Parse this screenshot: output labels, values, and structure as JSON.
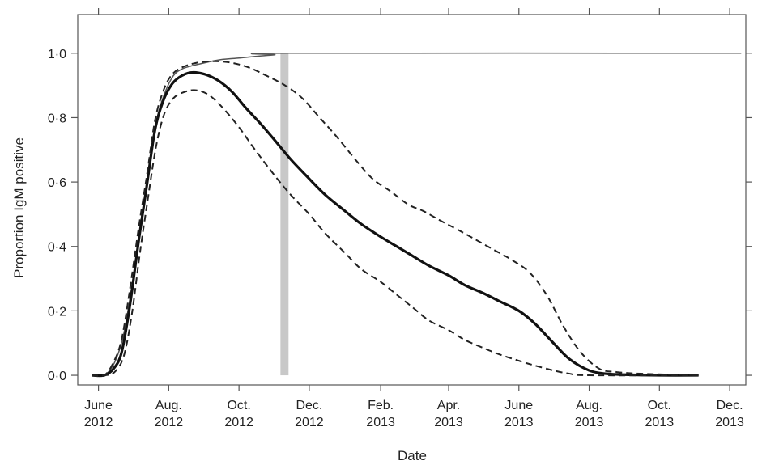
{
  "chart_data": {
    "type": "line",
    "title": "",
    "xlabel": "Date",
    "ylabel": "Proportion IgM positive",
    "xlim": [
      "2012-05-14",
      "2013-12-15"
    ],
    "ylim": [
      -0.03,
      1.12
    ],
    "grid": false,
    "legend": "none",
    "x_ticks": [
      {
        "date": "2012-06-01",
        "line1": "June",
        "line2": "2012"
      },
      {
        "date": "2012-08-01",
        "line1": "Aug.",
        "line2": "2012"
      },
      {
        "date": "2012-10-01",
        "line1": "Oct.",
        "line2": "2012"
      },
      {
        "date": "2012-12-01",
        "line1": "Dec.",
        "line2": "2012"
      },
      {
        "date": "2013-02-01",
        "line1": "Feb.",
        "line2": "2013"
      },
      {
        "date": "2013-04-01",
        "line1": "Apr.",
        "line2": "2013"
      },
      {
        "date": "2013-06-01",
        "line1": "June",
        "line2": "2013"
      },
      {
        "date": "2013-08-01",
        "line1": "Aug.",
        "line2": "2013"
      },
      {
        "date": "2013-10-01",
        "line1": "Oct.",
        "line2": "2013"
      },
      {
        "date": "2013-12-01",
        "line1": "Dec.",
        "line2": "2013"
      }
    ],
    "y_ticks": [
      {
        "value": 0.0,
        "label": "0·0"
      },
      {
        "value": 0.2,
        "label": "0·2"
      },
      {
        "value": 0.4,
        "label": "0·4"
      },
      {
        "value": 0.6,
        "label": "0·6"
      },
      {
        "value": 0.8,
        "label": "0·8"
      },
      {
        "value": 1.0,
        "label": "1·0"
      }
    ],
    "shaded_band": {
      "start": "2012-11-06",
      "end": "2012-11-13",
      "y0": 0.0,
      "y1": 1.0,
      "color": "#c8c8c8"
    },
    "series": [
      {
        "style": "thin",
        "color": "#555555",
        "points": [
          [
            "2012-05-26",
            0.0
          ],
          [
            "2012-06-06",
            0.0
          ],
          [
            "2012-06-15",
            0.04
          ],
          [
            "2012-06-23",
            0.13
          ],
          [
            "2012-07-01",
            0.3
          ],
          [
            "2012-07-08",
            0.48
          ],
          [
            "2012-07-15",
            0.65
          ],
          [
            "2012-07-22",
            0.8
          ],
          [
            "2012-07-29",
            0.88
          ],
          [
            "2012-08-05",
            0.93
          ],
          [
            "2012-08-12",
            0.95
          ],
          [
            "2012-08-20",
            0.96
          ],
          [
            "2012-09-01",
            0.97
          ],
          [
            "2012-09-15",
            0.98
          ],
          [
            "2012-10-01",
            0.985
          ],
          [
            "2012-10-15",
            0.99
          ],
          [
            "2012-11-01",
            0.995
          ],
          [
            "2012-11-13",
            1.0
          ],
          [
            "2013-12-11",
            1.0
          ]
        ]
      },
      {
        "style": "solid",
        "color": "#111111",
        "points": [
          [
            "2012-05-26",
            0.0
          ],
          [
            "2012-06-06",
            0.0
          ],
          [
            "2012-06-14",
            0.02
          ],
          [
            "2012-06-21",
            0.07
          ],
          [
            "2012-06-28",
            0.21
          ],
          [
            "2012-07-06",
            0.42
          ],
          [
            "2012-07-13",
            0.59
          ],
          [
            "2012-07-20",
            0.76
          ],
          [
            "2012-07-27",
            0.85
          ],
          [
            "2012-08-03",
            0.9
          ],
          [
            "2012-08-10",
            0.925
          ],
          [
            "2012-08-20",
            0.94
          ],
          [
            "2012-09-01",
            0.935
          ],
          [
            "2012-09-13",
            0.915
          ],
          [
            "2012-09-25",
            0.88
          ],
          [
            "2012-10-07",
            0.83
          ],
          [
            "2012-10-20",
            0.78
          ],
          [
            "2012-11-01",
            0.73
          ],
          [
            "2012-11-15",
            0.67
          ],
          [
            "2012-12-01",
            0.61
          ],
          [
            "2012-12-15",
            0.56
          ],
          [
            "2013-01-01",
            0.51
          ],
          [
            "2013-01-15",
            0.47
          ],
          [
            "2013-02-01",
            0.43
          ],
          [
            "2013-02-15",
            0.4
          ],
          [
            "2013-03-01",
            0.37
          ],
          [
            "2013-03-15",
            0.34
          ],
          [
            "2013-04-01",
            0.31
          ],
          [
            "2013-04-15",
            0.28
          ],
          [
            "2013-05-01",
            0.255
          ],
          [
            "2013-05-15",
            0.23
          ],
          [
            "2013-06-01",
            0.2
          ],
          [
            "2013-06-15",
            0.16
          ],
          [
            "2013-07-01",
            0.1
          ],
          [
            "2013-07-15",
            0.05
          ],
          [
            "2013-08-01",
            0.015
          ],
          [
            "2013-08-15",
            0.005
          ],
          [
            "2013-09-01",
            0.002
          ],
          [
            "2013-10-01",
            0.0
          ],
          [
            "2013-11-04",
            0.0
          ]
        ]
      },
      {
        "style": "dashed",
        "color": "#222222",
        "points": [
          [
            "2012-05-26",
            0.0
          ],
          [
            "2012-06-06",
            0.0
          ],
          [
            "2012-06-14",
            0.04
          ],
          [
            "2012-06-21",
            0.11
          ],
          [
            "2012-06-28",
            0.26
          ],
          [
            "2012-07-06",
            0.46
          ],
          [
            "2012-07-13",
            0.62
          ],
          [
            "2012-07-20",
            0.79
          ],
          [
            "2012-07-27",
            0.88
          ],
          [
            "2012-08-03",
            0.93
          ],
          [
            "2012-08-12",
            0.955
          ],
          [
            "2012-08-25",
            0.97
          ],
          [
            "2012-09-10",
            0.975
          ],
          [
            "2012-09-25",
            0.97
          ],
          [
            "2012-10-10",
            0.955
          ],
          [
            "2012-10-25",
            0.93
          ],
          [
            "2012-11-10",
            0.9
          ],
          [
            "2012-11-25",
            0.86
          ],
          [
            "2012-12-10",
            0.8
          ],
          [
            "2012-12-25",
            0.74
          ],
          [
            "2013-01-10",
            0.67
          ],
          [
            "2013-01-25",
            0.61
          ],
          [
            "2013-02-10",
            0.57
          ],
          [
            "2013-02-25",
            0.53
          ],
          [
            "2013-03-10",
            0.51
          ],
          [
            "2013-03-25",
            0.48
          ],
          [
            "2013-04-10",
            0.45
          ],
          [
            "2013-04-25",
            0.42
          ],
          [
            "2013-05-10",
            0.39
          ],
          [
            "2013-05-25",
            0.36
          ],
          [
            "2013-06-10",
            0.32
          ],
          [
            "2013-06-25",
            0.25
          ],
          [
            "2013-07-10",
            0.15
          ],
          [
            "2013-07-25",
            0.07
          ],
          [
            "2013-08-10",
            0.02
          ],
          [
            "2013-08-25",
            0.01
          ],
          [
            "2013-09-15",
            0.005
          ],
          [
            "2013-11-04",
            0.0
          ]
        ]
      },
      {
        "style": "dashed",
        "color": "#222222",
        "points": [
          [
            "2012-05-26",
            0.0
          ],
          [
            "2012-06-06",
            0.0
          ],
          [
            "2012-06-15",
            0.01
          ],
          [
            "2012-06-23",
            0.06
          ],
          [
            "2012-06-30",
            0.19
          ],
          [
            "2012-07-07",
            0.38
          ],
          [
            "2012-07-14",
            0.55
          ],
          [
            "2012-07-21",
            0.71
          ],
          [
            "2012-07-28",
            0.81
          ],
          [
            "2012-08-05",
            0.86
          ],
          [
            "2012-08-15",
            0.88
          ],
          [
            "2012-08-25",
            0.885
          ],
          [
            "2012-09-05",
            0.87
          ],
          [
            "2012-09-17",
            0.83
          ],
          [
            "2012-10-01",
            0.77
          ],
          [
            "2012-10-15",
            0.7
          ],
          [
            "2012-11-01",
            0.62
          ],
          [
            "2012-11-15",
            0.56
          ],
          [
            "2012-12-01",
            0.5
          ],
          [
            "2012-12-15",
            0.44
          ],
          [
            "2013-01-01",
            0.38
          ],
          [
            "2013-01-15",
            0.33
          ],
          [
            "2013-02-01",
            0.29
          ],
          [
            "2013-02-15",
            0.25
          ],
          [
            "2013-03-01",
            0.21
          ],
          [
            "2013-03-15",
            0.17
          ],
          [
            "2013-04-01",
            0.14
          ],
          [
            "2013-04-15",
            0.11
          ],
          [
            "2013-05-01",
            0.085
          ],
          [
            "2013-05-15",
            0.065
          ],
          [
            "2013-06-01",
            0.045
          ],
          [
            "2013-06-15",
            0.03
          ],
          [
            "2013-07-01",
            0.015
          ],
          [
            "2013-07-15",
            0.005
          ],
          [
            "2013-08-01",
            0.0
          ],
          [
            "2013-11-04",
            0.0
          ]
        ]
      }
    ]
  }
}
